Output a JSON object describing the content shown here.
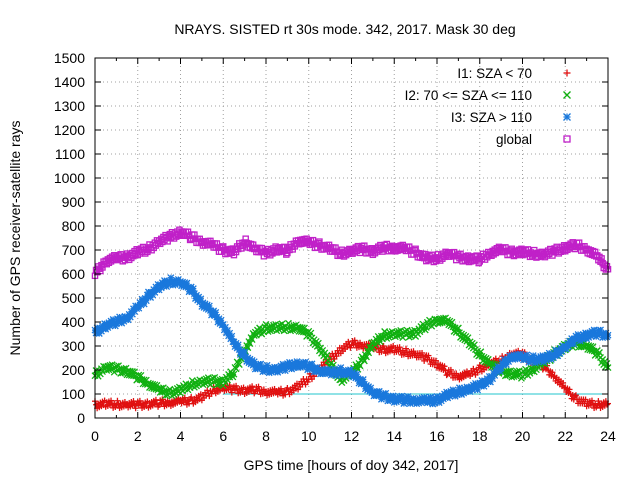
{
  "chart_data": {
    "type": "scatter",
    "title": "NRAYS. SISTED rt 30s mode. 342, 2017. Mask 30 deg",
    "xlabel": "GPS time [hours of doy 342, 2017]",
    "ylabel": "Number of GPS receiver-satellite rays",
    "xlim": [
      0,
      24
    ],
    "ylim": [
      0,
      1500
    ],
    "x_ticks": [
      "0",
      "2",
      "4",
      "6",
      "8",
      "10",
      "12",
      "14",
      "16",
      "18",
      "20",
      "22",
      "24"
    ],
    "y_ticks": [
      "0",
      "100",
      "200",
      "300",
      "400",
      "500",
      "600",
      "700",
      "800",
      "900",
      "1000",
      "1100",
      "1200",
      "1300",
      "1400",
      "1500"
    ],
    "grid": true,
    "legend_position": "top-right",
    "threshold_line": {
      "y": 100,
      "x_range": [
        6,
        24
      ],
      "color": "#22c4cc"
    },
    "series": [
      {
        "name": "I1: SZA < 70",
        "marker": "+",
        "color": "#e01010",
        "x": [
          0,
          0.5,
          1,
          1.5,
          2,
          2.5,
          3,
          3.5,
          4,
          4.5,
          5,
          5.5,
          6,
          6.5,
          7,
          7.5,
          8,
          8.5,
          9,
          9.5,
          10,
          10.5,
          11,
          11.5,
          12,
          12.5,
          13,
          13.5,
          14,
          14.5,
          15,
          15.5,
          16,
          16.5,
          17,
          17.5,
          18,
          18.5,
          19,
          19.5,
          20,
          20.5,
          21,
          21.5,
          22,
          22.5,
          23,
          23.5,
          24
        ],
        "values": [
          55,
          58,
          57,
          55,
          56,
          58,
          62,
          65,
          68,
          72,
          85,
          115,
          125,
          120,
          115,
          118,
          110,
          105,
          110,
          130,
          165,
          205,
          245,
          285,
          310,
          305,
          295,
          285,
          285,
          275,
          265,
          250,
          225,
          190,
          175,
          180,
          205,
          225,
          240,
          265,
          265,
          235,
          215,
          175,
          120,
          80,
          60,
          55,
          60
        ]
      },
      {
        "name": "I2: 70 <= SZA <= 110",
        "marker": "x",
        "color": "#10b010",
        "x": [
          0,
          0.5,
          1,
          1.5,
          2,
          2.5,
          3,
          3.5,
          4,
          4.5,
          5,
          5.5,
          6,
          6.5,
          7,
          7.5,
          8,
          8.5,
          9,
          9.5,
          10,
          10.5,
          11,
          11.5,
          12,
          12.5,
          13,
          13.5,
          14,
          14.5,
          15,
          15.5,
          16,
          16.5,
          17,
          17.5,
          18,
          18.5,
          19,
          19.5,
          20,
          20.5,
          21,
          21.5,
          22,
          22.5,
          23,
          23.5,
          24
        ],
        "values": [
          180,
          210,
          205,
          195,
          170,
          145,
          115,
          105,
          115,
          140,
          150,
          155,
          150,
          190,
          285,
          350,
          375,
          375,
          380,
          375,
          350,
          295,
          225,
          160,
          185,
          240,
          305,
          345,
          350,
          350,
          355,
          385,
          410,
          400,
          360,
          315,
          265,
          225,
          195,
          185,
          180,
          205,
          230,
          270,
          295,
          315,
          300,
          270,
          210
        ]
      },
      {
        "name": "I3: SZA > 110",
        "marker": "*",
        "color": "#1a78dc",
        "x": [
          0,
          0.5,
          1,
          1.5,
          2,
          2.5,
          3,
          3.5,
          4,
          4.5,
          5,
          5.5,
          6,
          6.5,
          7,
          7.5,
          8,
          8.5,
          9,
          9.5,
          10,
          10.5,
          11,
          11.5,
          12,
          12.5,
          13,
          13.5,
          14,
          14.5,
          15,
          15.5,
          16,
          16.5,
          17,
          17.5,
          18,
          18.5,
          19,
          19.5,
          20,
          20.5,
          21,
          21.5,
          22,
          22.5,
          23,
          23.5,
          24
        ],
        "values": [
          355,
          385,
          400,
          420,
          460,
          510,
          545,
          570,
          565,
          535,
          480,
          440,
          390,
          310,
          260,
          215,
          205,
          200,
          215,
          225,
          215,
          200,
          185,
          195,
          185,
          150,
          105,
          90,
          80,
          75,
          75,
          70,
          75,
          95,
          110,
          120,
          135,
          165,
          215,
          260,
          250,
          245,
          245,
          265,
          295,
          330,
          345,
          355,
          345
        ]
      },
      {
        "name": "global",
        "marker": "square",
        "color": "#c020c8",
        "x": [
          0,
          0.5,
          1,
          1.5,
          2,
          2.5,
          3,
          3.5,
          4,
          4.5,
          5,
          5.5,
          6,
          6.5,
          7,
          7.5,
          8,
          8.5,
          9,
          9.5,
          10,
          10.5,
          11,
          11.5,
          12,
          12.5,
          13,
          13.5,
          14,
          14.5,
          15,
          15.5,
          16,
          16.5,
          17,
          17.5,
          18,
          18.5,
          19,
          19.5,
          20,
          20.5,
          21,
          21.5,
          22,
          22.5,
          23,
          23.5,
          24
        ],
        "values": [
          600,
          655,
          665,
          670,
          690,
          705,
          735,
          755,
          775,
          755,
          735,
          720,
          700,
          690,
          735,
          705,
          685,
          705,
          695,
          740,
          730,
          720,
          705,
          685,
          695,
          705,
          695,
          710,
          710,
          705,
          690,
          665,
          665,
          685,
          670,
          665,
          660,
          690,
          700,
          690,
          690,
          685,
          680,
          695,
          710,
          720,
          705,
          670,
          620
        ]
      }
    ]
  }
}
